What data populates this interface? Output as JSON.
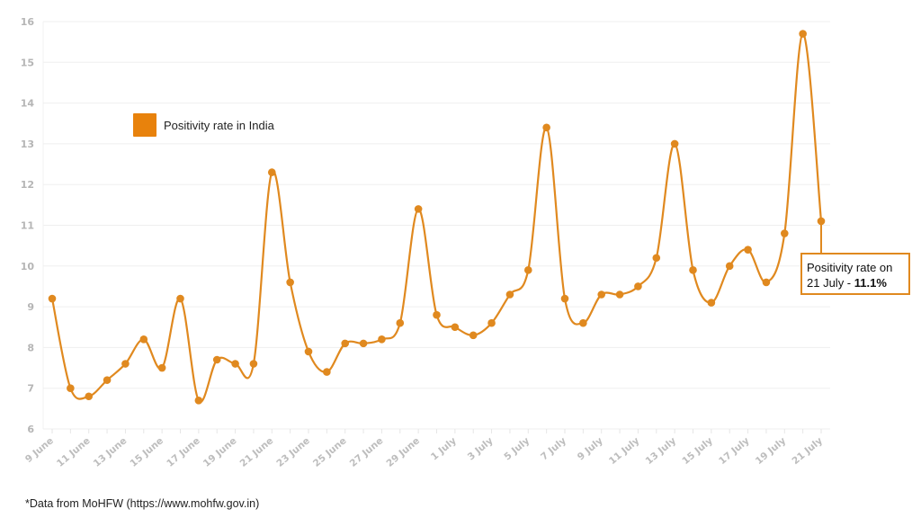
{
  "chart_data": {
    "type": "line",
    "title": "",
    "xlabel": "",
    "ylabel": "",
    "ylim": [
      6,
      16
    ],
    "yticks": [
      6,
      7,
      8,
      9,
      10,
      11,
      12,
      13,
      14,
      15,
      16
    ],
    "grid": "horizontal",
    "legend_position": "upper-left (inside)",
    "x": [
      "9 June",
      "10 June",
      "11 June",
      "12 June",
      "13 June",
      "14 June",
      "15 June",
      "16 June",
      "17 June",
      "18 June",
      "19 June",
      "20 June",
      "21 June",
      "22 June",
      "23 June",
      "24 June",
      "25 June",
      "26 June",
      "27 June",
      "28 June",
      "29 June",
      "30 June",
      "1 July",
      "2 July",
      "3 July",
      "4 July",
      "5 July",
      "6 July",
      "7 July",
      "8 July",
      "9 July",
      "10 July",
      "11 July",
      "12 July",
      "13 July",
      "14 July",
      "15 July",
      "16 July",
      "17 July",
      "18 July",
      "19 July",
      "20 July",
      "21 July"
    ],
    "xtick_labels": [
      "9 June",
      "11 June",
      "13 June",
      "15 June",
      "17 June",
      "19 June",
      "21 June",
      "23 June",
      "25 June",
      "27 June",
      "29 June",
      "1 July",
      "3 July",
      "5 July",
      "7 July",
      "9 July",
      "11 July",
      "13 July",
      "15 July",
      "17 July",
      "19 July",
      "21 July"
    ],
    "series": [
      {
        "name": "Positivity rate in India",
        "color": "#E0891F",
        "values": [
          9.2,
          7.0,
          6.8,
          7.2,
          7.6,
          8.2,
          7.5,
          9.2,
          6.7,
          7.7,
          7.6,
          7.6,
          12.3,
          9.6,
          7.9,
          7.4,
          8.1,
          8.1,
          8.2,
          8.6,
          11.4,
          8.8,
          8.5,
          8.3,
          8.6,
          9.3,
          9.9,
          13.4,
          9.2,
          8.6,
          9.3,
          9.3,
          9.5,
          10.2,
          13.0,
          9.9,
          9.1,
          10.0,
          10.4,
          9.6,
          10.8,
          15.7,
          11.1
        ]
      }
    ],
    "annotations": [
      {
        "x": "21 July",
        "text_line1": "Positivity rate on",
        "text_line2_prefix": "21 July - ",
        "text_line2_bold": "11.1%"
      }
    ]
  },
  "legend": {
    "label": "Positivity rate in India",
    "color": "#E8820C"
  },
  "annotation": {
    "line1": "Positivity rate on",
    "line2_prefix": "21 July - ",
    "line2_value": "11.1%"
  },
  "footer": {
    "source": "*Data from MoHFW (https://www.mohfw.gov.in)"
  }
}
